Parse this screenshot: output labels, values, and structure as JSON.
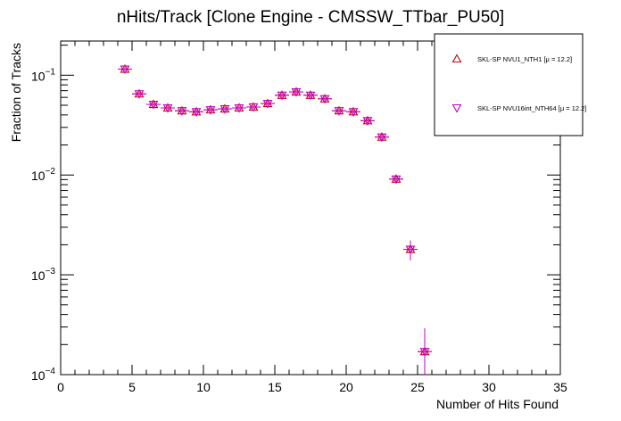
{
  "chart_data": {
    "type": "scatter",
    "title": "nHits/Track [Clone Engine - CMSSW_TTbar_PU50]",
    "xlabel": "Number of Hits Found",
    "ylabel": "Fraction of Tracks",
    "xlim": [
      0,
      35
    ],
    "ylim": [
      0.0001,
      0.22
    ],
    "y_scale": "log",
    "grid": false,
    "legend_position": "top-right",
    "x_ticks": [
      0,
      5,
      10,
      15,
      20,
      25,
      30,
      35
    ],
    "x_tick_labels": [
      "0",
      "5",
      "10",
      "15",
      "20",
      "25",
      "30",
      "35"
    ],
    "y_ticks": [
      0.1,
      0.01,
      0.001,
      0.0001
    ],
    "y_tick_labels": [
      {
        "base": "10",
        "exp": "−1"
      },
      {
        "base": "10",
        "exp": "−2"
      },
      {
        "base": "10",
        "exp": "−3"
      },
      {
        "base": "10",
        "exp": "−4"
      }
    ],
    "x": [
      4.5,
      5.5,
      6.5,
      7.5,
      8.5,
      9.5,
      10.5,
      11.5,
      12.5,
      13.5,
      14.5,
      15.5,
      16.5,
      17.5,
      18.5,
      19.5,
      20.5,
      21.5,
      22.5,
      23.5,
      24.5,
      25.5
    ],
    "series": [
      {
        "name": "SKL-SP NVU1_NTH1 [μ = 12.2]",
        "marker": "triangle-up",
        "color": "#cc0000",
        "values": [
          0.115,
          0.065,
          0.051,
          0.047,
          0.044,
          0.043,
          0.045,
          0.046,
          0.047,
          0.048,
          0.052,
          0.063,
          0.068,
          0.063,
          0.058,
          0.044,
          0.043,
          0.035,
          0.024,
          0.0091,
          0.0018,
          0.00017
        ],
        "errors": [
          0.005,
          0.003,
          0.0025,
          0.0022,
          0.002,
          0.002,
          0.002,
          0.002,
          0.002,
          0.002,
          0.0024,
          0.003,
          0.0032,
          0.003,
          0.0028,
          0.002,
          0.002,
          0.0018,
          0.0014,
          0.0006,
          0.0004,
          0.00012
        ]
      },
      {
        "name": "SKL-SP NVU16int_NTH64 [μ = 12.2]",
        "marker": "triangle-down",
        "color": "#c000c0",
        "values": [
          0.115,
          0.065,
          0.051,
          0.047,
          0.044,
          0.043,
          0.045,
          0.046,
          0.047,
          0.048,
          0.052,
          0.063,
          0.068,
          0.063,
          0.058,
          0.044,
          0.043,
          0.035,
          0.024,
          0.0091,
          0.0018,
          0.00017
        ],
        "errors": [
          0.005,
          0.003,
          0.0025,
          0.0022,
          0.002,
          0.002,
          0.002,
          0.002,
          0.002,
          0.002,
          0.0024,
          0.003,
          0.0032,
          0.003,
          0.0028,
          0.002,
          0.002,
          0.0018,
          0.0014,
          0.0006,
          0.0004,
          0.00012
        ]
      }
    ]
  }
}
